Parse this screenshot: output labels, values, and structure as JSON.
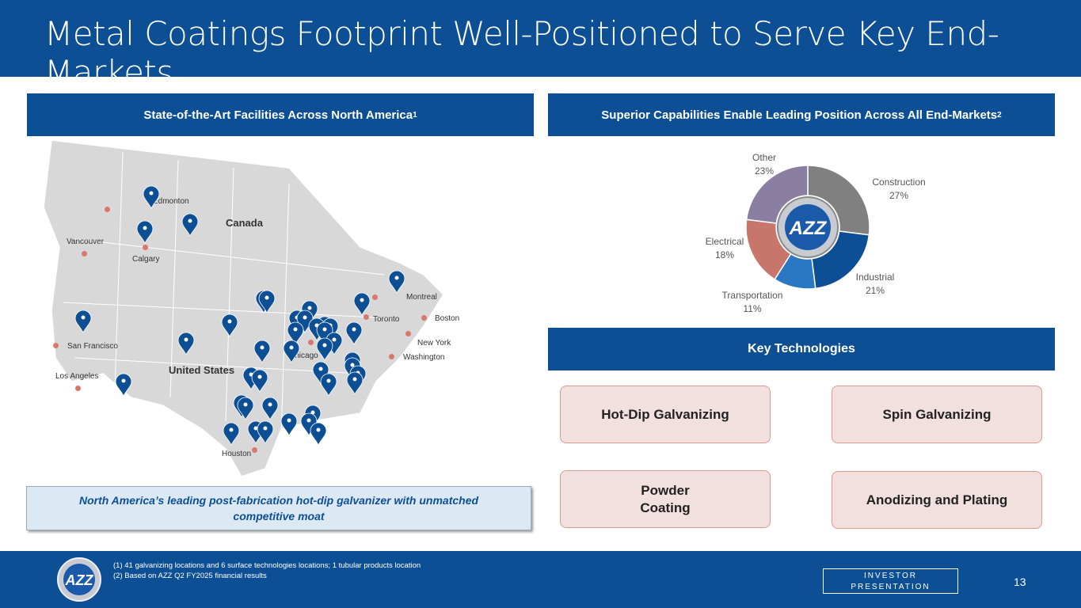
{
  "title": "Metal Coatings Footprint Well-Positioned to Serve Key End-Markets",
  "left_header": {
    "text": "State-of-the-Art Facilities Across North America",
    "sup": "1"
  },
  "right_header": {
    "text": "Superior Capabilities Enable Leading Position Across All End-Markets",
    "sup": "2"
  },
  "map": {
    "countries": [
      "Canada",
      "United States"
    ],
    "cities": [
      "Edmonton",
      "Vancouver",
      "Calgary",
      "Montreal",
      "Toronto",
      "Boston",
      "New York",
      "Washington",
      "San Francisco",
      "Chicago",
      "Los Angeles",
      "Houston"
    ]
  },
  "moat_text": "North America’s leading post-fabrication hot-dip galvanizer with unmatched competitive moat",
  "chart_data": {
    "type": "pie",
    "donut": true,
    "categories": [
      "Construction",
      "Industrial",
      "Transportation",
      "Electrical",
      "Other"
    ],
    "values": [
      27,
      21,
      11,
      18,
      23
    ],
    "labels": [
      "27%",
      "21%",
      "11%",
      "18%",
      "23%"
    ],
    "colors": [
      "#808080",
      "#0d4f95",
      "#2a78c2",
      "#c8766b",
      "#8a7fa0"
    ]
  },
  "key_tech": {
    "header": "Key Technologies",
    "items": [
      "Hot-Dip Galvanizing",
      "Spin Galvanizing",
      "Powder Coating",
      "Anodizing and Plating"
    ]
  },
  "footer": {
    "notes": [
      "(1)  41 galvanizing locations and 6 surface technologies locations; 1 tubular products location",
      "(2)  Based on AZZ Q2 FY2025 financial results"
    ],
    "badge": "INVESTOR PRESENTATION",
    "page": "13"
  }
}
